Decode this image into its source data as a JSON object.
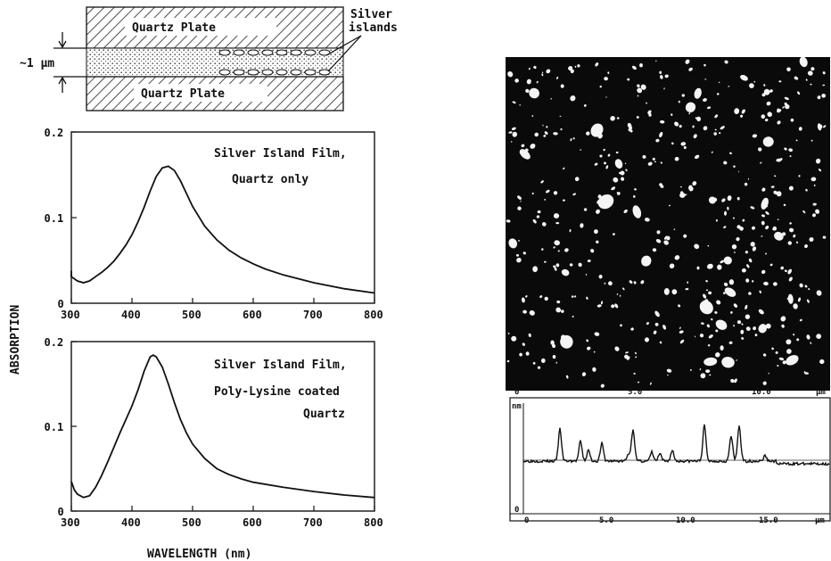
{
  "diagram": {
    "top_plate_label": "Quartz Plate",
    "bottom_plate_label": "Quartz Plate",
    "gap_label": "~1 μm",
    "silver_label_line1": "Silver",
    "silver_label_line2": "islands"
  },
  "shared": {
    "ylabel": "ABSORPTION",
    "xlabel": "WAVELENGTH  (nm)"
  },
  "afm": {
    "image_ticks": [
      "0",
      "5.0",
      "10.0",
      "µm"
    ],
    "profile_x_ticks": [
      "0",
      "5.0",
      "10.0",
      "15.0",
      "µm"
    ],
    "profile_y_tick_top": "nm",
    "profile_y_tick_bottom": "0"
  },
  "chart_data": [
    {
      "type": "line",
      "annotation_line1": "Silver Island Film,",
      "annotation_line2": "Quartz only",
      "annotation_line3": "",
      "xlim": [
        300,
        800
      ],
      "ylim": [
        0,
        0.2
      ],
      "xticks": [
        "300",
        "400",
        "500",
        "600",
        "700",
        "800"
      ],
      "yticks": [
        "0",
        "0.1",
        "0.2"
      ],
      "series": [
        {
          "x": [
            290,
            300,
            310,
            320,
            330,
            340,
            350,
            360,
            370,
            380,
            390,
            400,
            410,
            420,
            430,
            440,
            450,
            460,
            470,
            480,
            490,
            500,
            520,
            540,
            560,
            580,
            600,
            620,
            650,
            700,
            750,
            800
          ],
          "values": [
            0.038,
            0.031,
            0.026,
            0.024,
            0.026,
            0.031,
            0.036,
            0.042,
            0.049,
            0.058,
            0.068,
            0.08,
            0.095,
            0.112,
            0.131,
            0.148,
            0.158,
            0.16,
            0.155,
            0.143,
            0.128,
            0.113,
            0.09,
            0.074,
            0.062,
            0.053,
            0.046,
            0.04,
            0.033,
            0.024,
            0.017,
            0.012
          ]
        }
      ]
    },
    {
      "type": "line",
      "annotation_line1": "Silver Island Film,",
      "annotation_line2": "Poly-Lysine coated",
      "annotation_line3": "Quartz",
      "xlim": [
        300,
        800
      ],
      "ylim": [
        0,
        0.2
      ],
      "xticks": [
        "300",
        "400",
        "500",
        "600",
        "700",
        "800"
      ],
      "yticks": [
        "0",
        "0.1",
        "0.2"
      ],
      "series": [
        {
          "x": [
            300,
            305,
            310,
            320,
            330,
            340,
            350,
            360,
            370,
            380,
            390,
            400,
            410,
            420,
            430,
            435,
            440,
            450,
            460,
            470,
            480,
            490,
            500,
            520,
            540,
            560,
            580,
            600,
            650,
            700,
            750,
            800
          ],
          "values": [
            0.035,
            0.025,
            0.02,
            0.016,
            0.018,
            0.028,
            0.042,
            0.058,
            0.075,
            0.092,
            0.108,
            0.124,
            0.143,
            0.165,
            0.182,
            0.184,
            0.182,
            0.17,
            0.15,
            0.128,
            0.108,
            0.092,
            0.079,
            0.062,
            0.05,
            0.043,
            0.038,
            0.034,
            0.028,
            0.023,
            0.019,
            0.016
          ]
        }
      ]
    }
  ]
}
